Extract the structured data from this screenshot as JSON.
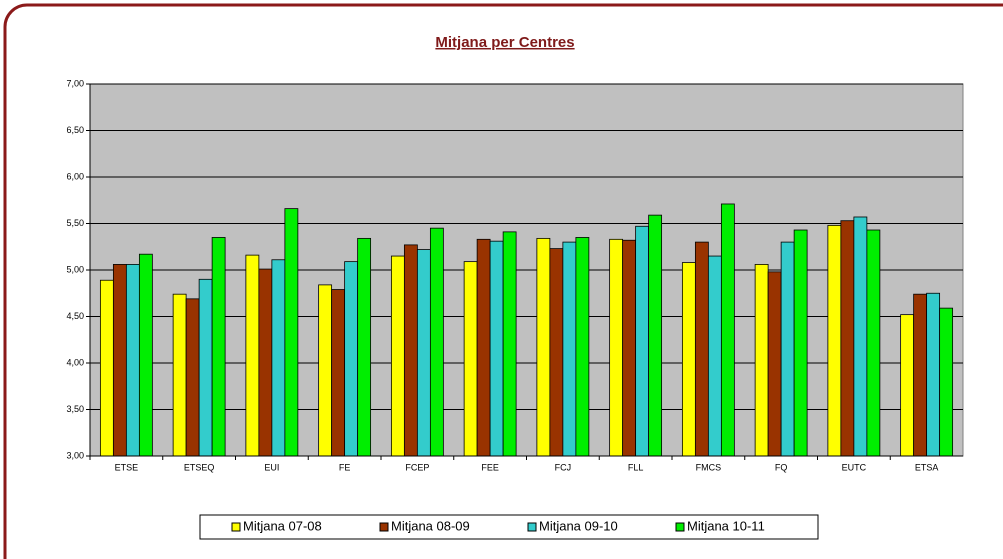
{
  "chart_data": {
    "type": "bar",
    "title": "Mitjana per Centres",
    "categories": [
      "ETSE",
      "ETSEQ",
      "EUI",
      "FE",
      "FCEP",
      "FEE",
      "FCJ",
      "FLL",
      "FMCS",
      "FQ",
      "EUTC",
      "ETSA"
    ],
    "series": [
      {
        "name": "Mitjana 07-08",
        "color": "#ffff00",
        "values": [
          4.89,
          4.74,
          5.16,
          4.84,
          5.15,
          5.09,
          5.34,
          5.33,
          5.08,
          5.06,
          5.48,
          4.52
        ]
      },
      {
        "name": "Mitjana 08-09",
        "color": "#993300",
        "values": [
          5.06,
          4.69,
          5.01,
          4.79,
          5.27,
          5.33,
          5.23,
          5.32,
          5.3,
          4.98,
          5.53,
          4.74
        ]
      },
      {
        "name": "Mitjana 09-10",
        "color": "#33cccc",
        "values": [
          5.06,
          4.9,
          5.11,
          5.09,
          5.22,
          5.31,
          5.3,
          5.47,
          5.15,
          5.3,
          5.57,
          4.75
        ]
      },
      {
        "name": "Mitjana 10-11",
        "color": "#00ee00",
        "values": [
          5.17,
          5.35,
          5.66,
          5.34,
          5.45,
          5.41,
          5.35,
          5.59,
          5.71,
          5.43,
          5.43,
          4.59
        ]
      }
    ],
    "ylim": [
      3,
      7
    ],
    "yticks": [
      {
        "value": 3,
        "label": "3,00"
      },
      {
        "value": 3.5,
        "label": "3,50"
      },
      {
        "value": 4,
        "label": "4,00"
      },
      {
        "value": 4.5,
        "label": "4,50"
      },
      {
        "value": 5,
        "label": "5,00"
      },
      {
        "value": 5.5,
        "label": "5,50"
      },
      {
        "value": 6,
        "label": "6,00"
      },
      {
        "value": 6.5,
        "label": "6,50"
      },
      {
        "value": 7,
        "label": "7,00"
      }
    ],
    "grid": true,
    "legend": "bottom",
    "plot_background": "#c0c0c0"
  }
}
